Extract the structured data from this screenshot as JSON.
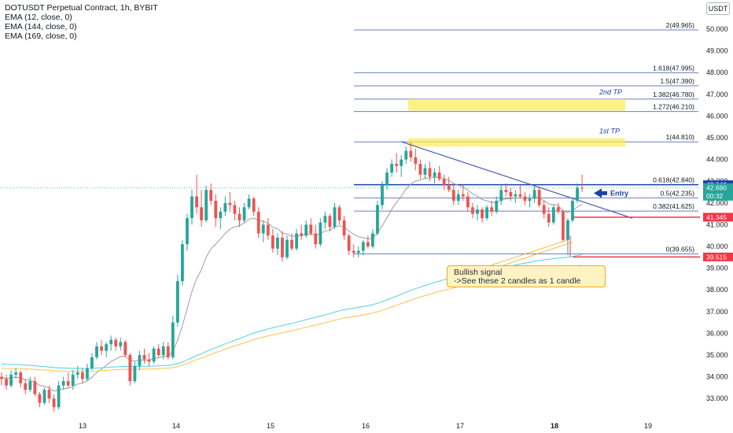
{
  "header": {
    "title": "DOTUSDT Perpetual Contract, 1h, BYBIT",
    "indicators": [
      "EMA (12, close, 0)",
      "EMA (144, close, 0)",
      "EMA (169, close, 0)"
    ],
    "currency": "USDT"
  },
  "chart_data": {
    "type": "candlestick",
    "x_ticks": [
      "13",
      "14",
      "15",
      "16",
      "17",
      "18",
      "19"
    ],
    "y_ticks": [
      "50.000",
      "49.000",
      "48.000",
      "47.000",
      "46.000",
      "45.000",
      "44.000",
      "43.000",
      "42.000",
      "41.000",
      "40.000",
      "39.000",
      "38.000",
      "37.000",
      "36.000",
      "35.000",
      "34.000",
      "33.000"
    ],
    "y_range": [
      32.5,
      51.3
    ],
    "fib_levels": [
      {
        "label": "0(39.655)",
        "value": 39.655,
        "color": "#6b7dbd"
      },
      {
        "label": "0.382(41.625)",
        "value": 41.625,
        "color": "#6b7dbd"
      },
      {
        "label": "0.5(42.235)",
        "value": 42.235,
        "color": "#6b7dbd"
      },
      {
        "label": "0.618(42.840)",
        "value": 42.84,
        "color": "#1c3fa8"
      },
      {
        "label": "1(44.810)",
        "value": 44.81,
        "color": "#6b7dbd"
      },
      {
        "label": "1.272(46.210)",
        "value": 46.21,
        "color": "#6b7dbd"
      },
      {
        "label": "1.382(46.780)",
        "value": 46.78,
        "color": "#6b7dbd"
      },
      {
        "label": "1.5(47.390)",
        "value": 47.39,
        "color": "#6b7dbd"
      },
      {
        "label": "1.618(47.995)",
        "value": 47.995,
        "color": "#6b7dbd"
      },
      {
        "label": "2(49.965)",
        "value": 49.965,
        "color": "#6b7dbd"
      }
    ],
    "tp_zones": [
      {
        "label": "1st TP",
        "low": 44.6,
        "high": 44.98
      },
      {
        "label": "2nd TP",
        "low": 46.25,
        "high": 46.78
      }
    ],
    "price_tags": [
      {
        "text": "42.840",
        "value": 42.84,
        "color": "#1c3fa8"
      },
      {
        "text": "42.690",
        "value": 42.69,
        "color": "#26a69a",
        "sub": "00:32"
      },
      {
        "text": "41.345",
        "value": 41.345,
        "color": "#f23645"
      },
      {
        "text": "39.515",
        "value": 39.515,
        "color": "#f23645"
      }
    ],
    "current_price": 42.69,
    "candles": [
      [
        34.0,
        34.2,
        33.6,
        33.9
      ],
      [
        33.9,
        34.1,
        33.4,
        33.6
      ],
      [
        33.6,
        34.3,
        33.5,
        34.1
      ],
      [
        34.1,
        34.4,
        33.9,
        34.2
      ],
      [
        34.2,
        34.3,
        33.5,
        33.7
      ],
      [
        33.7,
        33.9,
        33.2,
        33.4
      ],
      [
        33.4,
        34.0,
        33.3,
        33.8
      ],
      [
        33.8,
        34.0,
        33.1,
        33.2
      ],
      [
        33.2,
        33.3,
        32.6,
        32.8
      ],
      [
        32.8,
        33.5,
        32.7,
        33.4
      ],
      [
        33.4,
        33.6,
        32.8,
        33.0
      ],
      [
        33.0,
        33.2,
        32.4,
        32.6
      ],
      [
        32.6,
        33.8,
        32.5,
        33.6
      ],
      [
        33.6,
        34.0,
        33.4,
        33.8
      ],
      [
        33.8,
        34.2,
        33.5,
        33.6
      ],
      [
        33.6,
        34.3,
        33.4,
        34.1
      ],
      [
        34.1,
        34.5,
        33.9,
        34.2
      ],
      [
        34.2,
        34.4,
        33.7,
        33.9
      ],
      [
        33.9,
        34.6,
        33.8,
        34.4
      ],
      [
        34.4,
        35.1,
        34.3,
        34.9
      ],
      [
        34.9,
        35.6,
        34.8,
        35.4
      ],
      [
        35.4,
        35.7,
        35.0,
        35.2
      ],
      [
        35.2,
        35.6,
        34.9,
        35.5
      ],
      [
        35.5,
        35.9,
        35.2,
        35.7
      ],
      [
        35.7,
        35.8,
        35.2,
        35.4
      ],
      [
        35.4,
        35.8,
        35.2,
        35.6
      ],
      [
        35.6,
        35.7,
        34.9,
        35.0
      ],
      [
        35.0,
        35.1,
        33.6,
        33.8
      ],
      [
        33.8,
        34.7,
        33.7,
        34.5
      ],
      [
        34.5,
        35.2,
        34.3,
        35.0
      ],
      [
        35.0,
        35.3,
        34.6,
        34.8
      ],
      [
        34.8,
        35.1,
        34.5,
        34.7
      ],
      [
        34.7,
        35.4,
        34.6,
        35.3
      ],
      [
        35.3,
        35.5,
        34.9,
        35.0
      ],
      [
        35.0,
        35.6,
        34.8,
        35.4
      ],
      [
        35.4,
        35.6,
        34.8,
        34.9
      ],
      [
        34.9,
        36.8,
        34.8,
        36.5
      ],
      [
        36.5,
        38.7,
        36.3,
        38.4
      ],
      [
        38.4,
        40.3,
        38.2,
        40.1
      ],
      [
        40.1,
        41.5,
        39.8,
        41.3
      ],
      [
        41.3,
        42.6,
        41.0,
        42.3
      ],
      [
        42.3,
        43.3,
        41.5,
        41.8
      ],
      [
        41.8,
        42.6,
        40.9,
        41.2
      ],
      [
        41.2,
        42.8,
        41.1,
        42.6
      ],
      [
        42.6,
        42.9,
        41.9,
        42.1
      ],
      [
        42.1,
        42.4,
        40.9,
        41.3
      ],
      [
        41.3,
        41.8,
        40.8,
        41.6
      ],
      [
        41.6,
        42.3,
        41.4,
        42.0
      ],
      [
        42.0,
        42.5,
        41.6,
        41.9
      ],
      [
        41.9,
        42.1,
        41.2,
        41.5
      ],
      [
        41.5,
        41.8,
        40.9,
        41.2
      ],
      [
        41.2,
        42.0,
        41.1,
        41.8
      ],
      [
        41.8,
        42.4,
        41.7,
        42.2
      ],
      [
        42.2,
        42.3,
        41.4,
        41.6
      ],
      [
        41.6,
        41.8,
        40.4,
        40.6
      ],
      [
        40.6,
        41.2,
        40.2,
        41.0
      ],
      [
        41.0,
        41.3,
        40.3,
        40.5
      ],
      [
        40.5,
        40.8,
        39.7,
        39.9
      ],
      [
        39.9,
        40.6,
        39.6,
        40.4
      ],
      [
        40.4,
        40.7,
        39.3,
        39.5
      ],
      [
        39.5,
        40.5,
        39.4,
        40.3
      ],
      [
        40.3,
        40.6,
        39.8,
        39.9
      ],
      [
        39.9,
        40.8,
        39.8,
        40.6
      ],
      [
        40.6,
        41.0,
        40.3,
        40.5
      ],
      [
        40.5,
        41.2,
        40.4,
        41.0
      ],
      [
        41.0,
        41.3,
        40.5,
        40.6
      ],
      [
        40.6,
        41.0,
        39.9,
        40.1
      ],
      [
        40.1,
        41.3,
        40.0,
        41.1
      ],
      [
        41.1,
        41.6,
        40.8,
        41.4
      ],
      [
        41.4,
        41.5,
        40.7,
        40.9
      ],
      [
        40.9,
        42.0,
        40.8,
        41.8
      ],
      [
        41.8,
        41.9,
        41.0,
        41.2
      ],
      [
        41.2,
        41.4,
        40.3,
        40.5
      ],
      [
        40.5,
        40.6,
        39.6,
        39.8
      ],
      [
        39.8,
        40.1,
        39.5,
        39.7
      ],
      [
        39.7,
        40.0,
        39.5,
        39.8
      ],
      [
        39.8,
        40.3,
        39.6,
        40.2
      ],
      [
        40.2,
        40.5,
        39.9,
        40.0
      ],
      [
        40.0,
        40.8,
        39.9,
        40.6
      ],
      [
        40.6,
        42.1,
        40.5,
        41.9
      ],
      [
        41.9,
        43.0,
        41.7,
        42.8
      ],
      [
        42.8,
        43.6,
        42.6,
        43.4
      ],
      [
        43.4,
        44.0,
        43.2,
        43.8
      ],
      [
        43.8,
        44.3,
        43.4,
        43.7
      ],
      [
        43.7,
        44.2,
        43.2,
        44.0
      ],
      [
        44.0,
        44.6,
        43.8,
        44.4
      ],
      [
        44.4,
        44.8,
        43.9,
        44.1
      ],
      [
        44.1,
        44.5,
        43.5,
        43.8
      ],
      [
        43.8,
        44.0,
        43.1,
        43.3
      ],
      [
        43.3,
        43.8,
        43.1,
        43.6
      ],
      [
        43.6,
        43.9,
        43.0,
        43.2
      ],
      [
        43.2,
        43.6,
        42.9,
        43.4
      ],
      [
        43.4,
        43.7,
        43.0,
        43.1
      ],
      [
        43.1,
        43.3,
        42.6,
        42.8
      ],
      [
        42.8,
        43.2,
        42.5,
        42.6
      ],
      [
        42.6,
        42.9,
        41.9,
        42.1
      ],
      [
        42.1,
        42.6,
        41.9,
        42.4
      ],
      [
        42.4,
        42.8,
        42.1,
        42.3
      ],
      [
        42.3,
        42.5,
        41.6,
        41.8
      ],
      [
        41.8,
        42.0,
        41.3,
        41.5
      ],
      [
        41.5,
        41.9,
        41.2,
        41.7
      ],
      [
        41.7,
        41.8,
        41.1,
        41.3
      ],
      [
        41.3,
        41.9,
        41.2,
        41.8
      ],
      [
        41.8,
        42.1,
        41.4,
        41.6
      ],
      [
        41.6,
        42.3,
        41.5,
        42.1
      ],
      [
        42.1,
        42.8,
        41.9,
        42.6
      ],
      [
        42.6,
        42.9,
        42.3,
        42.5
      ],
      [
        42.5,
        42.7,
        42.1,
        42.3
      ],
      [
        42.3,
        42.6,
        42.0,
        42.4
      ],
      [
        42.4,
        42.8,
        42.2,
        42.3
      ],
      [
        42.3,
        42.5,
        41.9,
        42.1
      ],
      [
        42.1,
        42.4,
        41.8,
        42.2
      ],
      [
        42.2,
        42.8,
        42.0,
        42.6
      ],
      [
        42.6,
        42.7,
        41.8,
        41.9
      ],
      [
        41.9,
        42.1,
        41.3,
        41.5
      ],
      [
        41.5,
        41.8,
        40.9,
        41.1
      ],
      [
        41.1,
        41.9,
        41.0,
        41.8
      ],
      [
        41.8,
        42.0,
        41.5,
        41.6
      ],
      [
        41.6,
        41.7,
        40.2,
        40.3
      ],
      [
        40.3,
        41.3,
        39.6,
        41.2
      ],
      [
        41.2,
        42.2,
        41.1,
        42.1
      ],
      [
        42.1,
        42.9,
        42.0,
        42.7
      ],
      [
        42.7,
        43.3,
        42.5,
        42.69
      ]
    ],
    "ema_12_color": "#9e9e9e",
    "ema_144_color": "#4dd0e1",
    "ema_169_color": "#ffc04d"
  },
  "annotations": {
    "entry_label": "Entry",
    "note_line1": "Bullish signal",
    "note_line2": "->See these 2 candles as 1 candle"
  }
}
